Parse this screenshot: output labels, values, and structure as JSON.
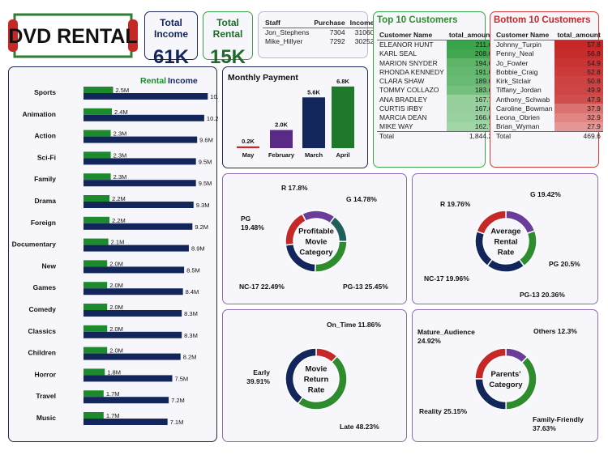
{
  "logo": {
    "text": "DVD RENTAL"
  },
  "kpis": [
    {
      "title": "Total Income",
      "value": "61K"
    },
    {
      "title": "Total Rental",
      "value": "15K"
    }
  ],
  "staff": {
    "headers": [
      "Staff",
      "Purchase",
      "Income"
    ],
    "rows": [
      [
        "Jon_Stephens",
        "7304",
        "31060"
      ],
      [
        "Mike_Hillyer",
        "7292",
        "30252"
      ]
    ]
  },
  "top_customers": {
    "title": "Top 10 Customers",
    "headers": [
      "Customer Name",
      "total_amount"
    ],
    "rows": [
      [
        "ELEANOR HUNT",
        "211.6"
      ],
      [
        "KARL SEAL",
        "208.6"
      ],
      [
        "MARION SNYDER",
        "194.6"
      ],
      [
        "RHONDA KENNEDY",
        "191.6"
      ],
      [
        "CLARA SHAW",
        "189.6"
      ],
      [
        "TOMMY COLLAZO",
        "183.6"
      ],
      [
        "ANA BRADLEY",
        "167.7"
      ],
      [
        "CURTIS IRBY",
        "167.6"
      ],
      [
        "MARCIA DEAN",
        "166.6"
      ],
      [
        "MIKE WAY",
        "162.7"
      ]
    ],
    "total_label": "Total",
    "total_value": "1,844.2",
    "color": "#3aa44a"
  },
  "bottom_customers": {
    "title": "Bottom 10 Customers",
    "headers": [
      "Customer Name",
      "total_amount"
    ],
    "rows": [
      [
        "Johnny_Turpin",
        "57.8"
      ],
      [
        "Penny_Neal",
        "56.8"
      ],
      [
        "Jo_Fowler",
        "54.9"
      ],
      [
        "Bobbie_Craig",
        "52.8"
      ],
      [
        "Kirk_Stclair",
        "50.8"
      ],
      [
        "Tiffany_Jordan",
        "49.9"
      ],
      [
        "Anthony_Schwab",
        "47.9"
      ],
      [
        "Caroline_Bowman",
        "37.9"
      ],
      [
        "Leona_Obrien",
        "32.9"
      ],
      [
        "Brian_Wyman",
        "27.9"
      ]
    ],
    "total_label": "Total",
    "total_value": "469.6",
    "color": "#d03a3a"
  },
  "chart_data": [
    {
      "type": "bar",
      "legend": [
        "Rental",
        "Income"
      ],
      "categories": [
        "Sports",
        "Animation",
        "Action",
        "Sci-Fi",
        "Family",
        "Drama",
        "Foreign",
        "Documentary",
        "New",
        "Games",
        "Comedy",
        "Classics",
        "Children",
        "Horror",
        "Travel",
        "Music"
      ],
      "series": [
        {
          "name": "Rental",
          "values": [
            2.5,
            2.4,
            2.3,
            2.3,
            2.3,
            2.2,
            2.2,
            2.1,
            2.0,
            2.0,
            2.0,
            2.0,
            2.0,
            1.8,
            1.7,
            1.7
          ],
          "labels": [
            "2.5M",
            "2.4M",
            "2.3M",
            "2.3M",
            "2.3M",
            "2.2M",
            "2.2M",
            "2.1M",
            "2.0M",
            "2.0M",
            "2.0M",
            "2.0M",
            "2.0M",
            "1.8M",
            "1.7M",
            "1.7M"
          ],
          "color": "#1e8a2e"
        },
        {
          "name": "Income",
          "values": [
            10.5,
            10.2,
            9.6,
            9.5,
            9.5,
            9.3,
            9.2,
            8.9,
            8.5,
            8.4,
            8.3,
            8.3,
            8.2,
            7.5,
            7.2,
            7.1
          ],
          "labels": [
            "10.5M",
            "10.2M",
            "9.6M",
            "9.5M",
            "9.5M",
            "9.3M",
            "9.2M",
            "8.9M",
            "8.5M",
            "8.4M",
            "8.3M",
            "8.3M",
            "8.2M",
            "7.5M",
            "7.2M",
            "7.1M"
          ],
          "color": "#13265c"
        }
      ]
    },
    {
      "type": "bar",
      "title": "Monthly Payment",
      "categories": [
        "May",
        "February",
        "March",
        "April"
      ],
      "values": [
        0.2,
        2.0,
        5.6,
        6.8
      ],
      "labels": [
        "0.2K",
        "2.0K",
        "5.6K",
        "6.8K"
      ],
      "colors": [
        "#c62828",
        "#5b2a86",
        "#13265c",
        "#1e7a2a"
      ]
    },
    {
      "type": "pie",
      "title": "Profitable Movie Category",
      "slices": [
        {
          "label": "R 17.8%",
          "value": 17.8,
          "color": "#6a3d9a"
        },
        {
          "label": "G 14.78%",
          "value": 14.78,
          "color": "#1f5f5b"
        },
        {
          "label": "PG-13 25.45%",
          "value": 25.45,
          "color": "#2e8b2e"
        },
        {
          "label": "NC-17 22.49%",
          "value": 22.49,
          "color": "#13265c"
        },
        {
          "label": "PG 19.48%",
          "value": 19.48,
          "color": "#c62828"
        }
      ]
    },
    {
      "type": "pie",
      "title": "Average Rental Rate",
      "slices": [
        {
          "label": "G 19.42%",
          "value": 19.42,
          "color": "#6a3d9a"
        },
        {
          "label": "PG 20.5%",
          "value": 20.5,
          "color": "#2e8b2e"
        },
        {
          "label": "PG-13 20.36%",
          "value": 20.36,
          "color": "#13265c"
        },
        {
          "label": "NC-17 19.96%",
          "value": 19.96,
          "color": "#13265c"
        },
        {
          "label": "R 19.76%",
          "value": 19.76,
          "color": "#c62828"
        }
      ]
    },
    {
      "type": "pie",
      "title": "Movie Return Rate",
      "slices": [
        {
          "label": "On_Time 11.86%",
          "value": 11.86,
          "color": "#c62828"
        },
        {
          "label": "Late 48.23%",
          "value": 48.23,
          "color": "#2e8b2e"
        },
        {
          "label": "Early 39.91%",
          "value": 39.91,
          "color": "#13265c"
        }
      ]
    },
    {
      "type": "pie",
      "title": "Parents' Category",
      "slices": [
        {
          "label": "Others 12.3%",
          "value": 12.3,
          "color": "#6a3d9a"
        },
        {
          "label": "Family-Friendly 37.63%",
          "value": 37.63,
          "color": "#2e8b2e"
        },
        {
          "label": "Reality 25.15%",
          "value": 25.15,
          "color": "#13265c"
        },
        {
          "label": "Mature_Audience 24.92%",
          "value": 24.92,
          "color": "#c62828"
        }
      ]
    }
  ]
}
